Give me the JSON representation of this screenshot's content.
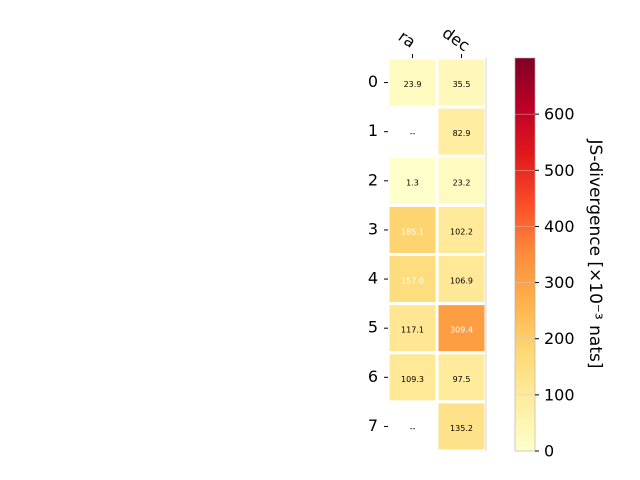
{
  "chart_data": {
    "type": "heatmap",
    "columns": [
      "ra",
      "dec"
    ],
    "rows": [
      "0",
      "1",
      "2",
      "3",
      "4",
      "5",
      "6",
      "7"
    ],
    "values": [
      [
        23.9,
        35.5
      ],
      [
        null,
        82.9
      ],
      [
        1.3,
        23.2
      ],
      [
        185.1,
        102.2
      ],
      [
        157.0,
        106.9
      ],
      [
        117.1,
        309.4
      ],
      [
        109.3,
        97.5
      ],
      [
        null,
        135.2
      ]
    ],
    "cell_labels": [
      [
        "23.9",
        "35.5"
      ],
      [
        "--",
        "82.9"
      ],
      [
        "1.3",
        "23.2"
      ],
      [
        "185.1",
        "102.2"
      ],
      [
        "157.0",
        "106.9"
      ],
      [
        "117.1",
        "309.4"
      ],
      [
        "109.3",
        "97.5"
      ],
      [
        "--",
        "135.2"
      ]
    ],
    "colorbar": {
      "label": "JS-divergence [×10⁻³ nats]",
      "range": [
        0,
        700
      ],
      "ticks": [
        "0",
        "100",
        "200",
        "300",
        "400",
        "500",
        "600"
      ],
      "colormap": "YlOrRd"
    },
    "grid": false,
    "colors": {
      "low": "#ffffcc",
      "high": "#800026",
      "cell_border": "#ffffff"
    }
  }
}
